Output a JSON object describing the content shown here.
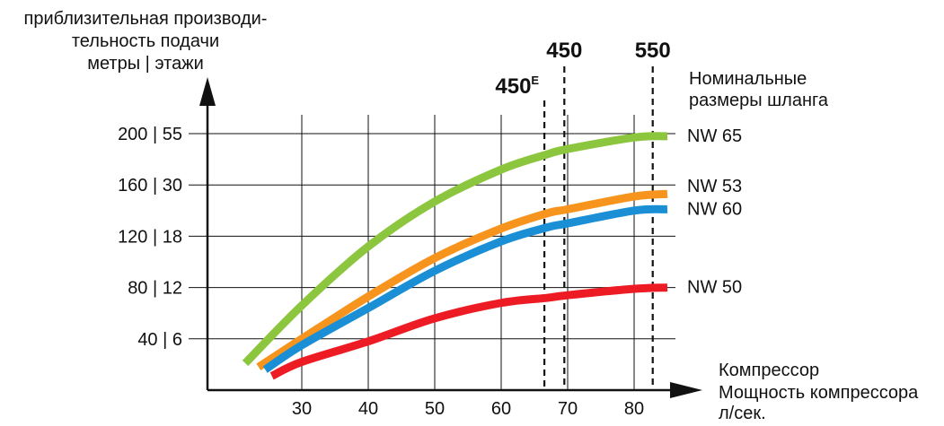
{
  "chart_data": {
    "type": "line",
    "ylabel_lines": [
      "приблизительная производи-",
      "тельность подачи",
      "метры | этажи"
    ],
    "xlabel_lines": [
      "Компрессор",
      "Мощность компрессора",
      "л/сек."
    ],
    "x_ticks": [
      30,
      40,
      50,
      60,
      70,
      80
    ],
    "y_ticks": [
      {
        "value": 40,
        "label": "40 | 6"
      },
      {
        "value": 80,
        "label": "80 | 12"
      },
      {
        "value": 120,
        "label": "120 | 18"
      },
      {
        "value": 160,
        "label": "160 | 30"
      },
      {
        "value": 200,
        "label": "200 | 55"
      }
    ],
    "xlim": [
      18,
      92
    ],
    "ylim": [
      0,
      225
    ],
    "grid": true,
    "legend_title_lines": [
      "Номинальные",
      "размеры шланга"
    ],
    "series": [
      {
        "name": "NW 65",
        "color": "#8cc63f",
        "points": [
          [
            21.5,
            21
          ],
          [
            30,
            66
          ],
          [
            40,
            112
          ],
          [
            50,
            147
          ],
          [
            60,
            172
          ],
          [
            67,
            184
          ],
          [
            70,
            188
          ],
          [
            80,
            197
          ],
          [
            85,
            198
          ]
        ]
      },
      {
        "name": "NW 53",
        "color": "#f7941d",
        "points": [
          [
            23.5,
            18
          ],
          [
            30,
            40
          ],
          [
            40,
            73
          ],
          [
            50,
            103
          ],
          [
            60,
            126
          ],
          [
            67,
            138
          ],
          [
            70,
            141
          ],
          [
            80,
            151
          ],
          [
            85,
            153
          ]
        ]
      },
      {
        "name": "NW 60",
        "color": "#1a8fd6",
        "points": [
          [
            24.5,
            16
          ],
          [
            30,
            35
          ],
          [
            40,
            64
          ],
          [
            50,
            93
          ],
          [
            60,
            116
          ],
          [
            67,
            127
          ],
          [
            70,
            130
          ],
          [
            80,
            140
          ],
          [
            85,
            141
          ]
        ]
      },
      {
        "name": "NW 50",
        "color": "#ed1c24",
        "points": [
          [
            25.5,
            11
          ],
          [
            30,
            22
          ],
          [
            40,
            38
          ],
          [
            50,
            56
          ],
          [
            60,
            68
          ],
          [
            67,
            72
          ],
          [
            70,
            74
          ],
          [
            80,
            79
          ],
          [
            85,
            80
          ]
        ]
      }
    ],
    "markers": [
      {
        "label": "450",
        "sup": "E",
        "x": 66.5
      },
      {
        "label": "450",
        "sup": "",
        "x": 69.5
      },
      {
        "label": "550",
        "sup": "",
        "x": 82.8
      }
    ]
  }
}
